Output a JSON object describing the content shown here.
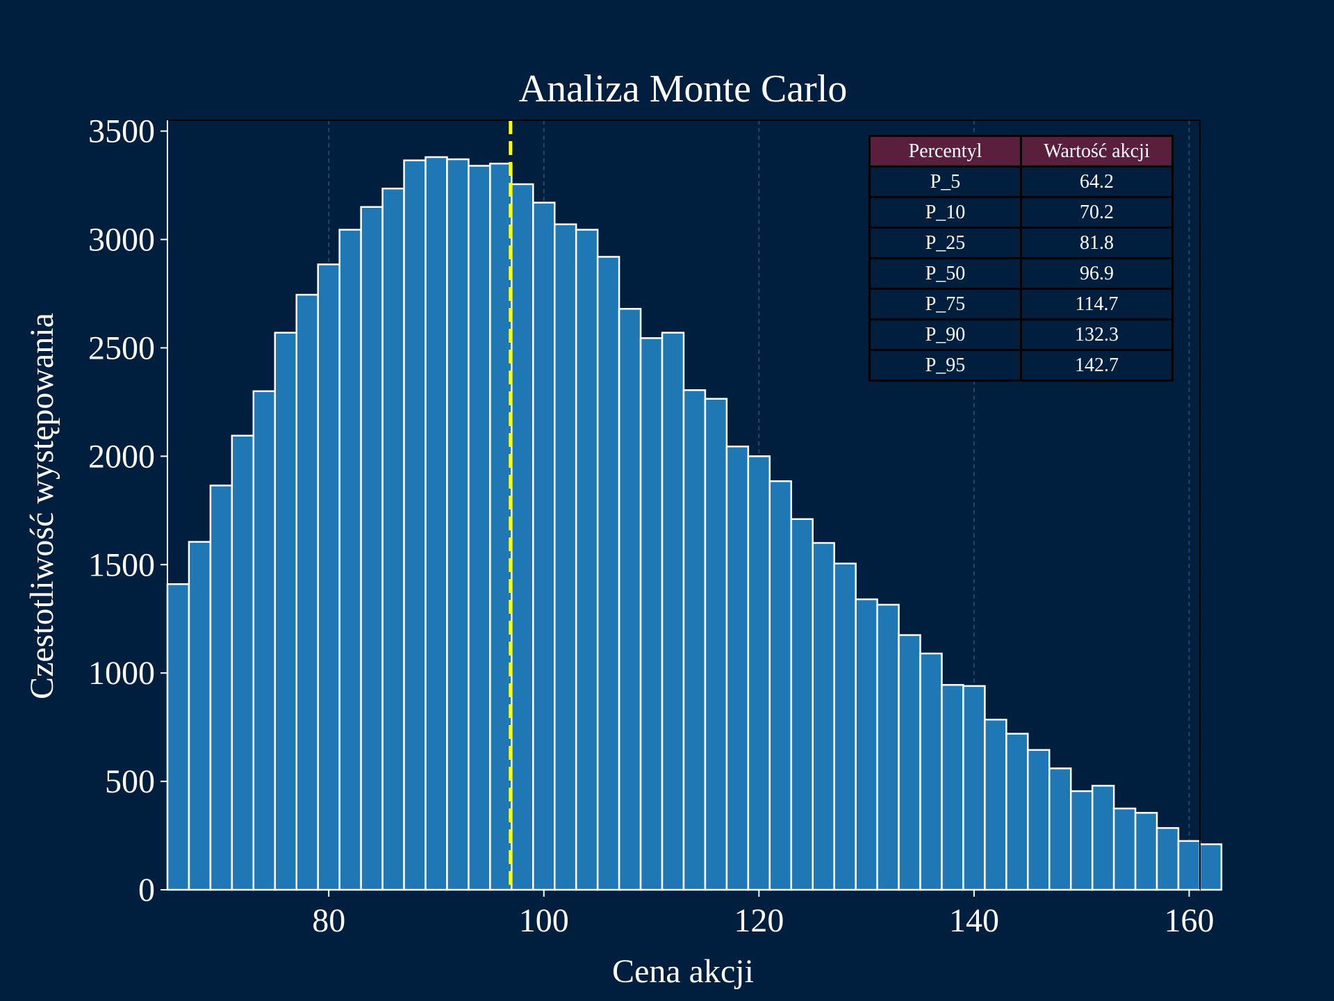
{
  "chart_data": {
    "type": "bar",
    "title": "Analiza Monte Carlo",
    "xlabel": "Cena akcji",
    "ylabel": "Czestotliwość występowania",
    "xlim": [
      65,
      161
    ],
    "ylim": [
      0,
      3550
    ],
    "xticks": [
      "80",
      "100",
      "120",
      "140",
      "160"
    ],
    "yticks": [
      "0",
      "500",
      "1000",
      "1500",
      "2000",
      "2500",
      "3000",
      "3500"
    ],
    "grid": "x, dashed",
    "bin_start": 65,
    "bin_width": 2,
    "values": [
      1410,
      1605,
      1865,
      2095,
      2300,
      2570,
      2745,
      2885,
      3045,
      3150,
      3235,
      3365,
      3380,
      3370,
      3340,
      3350,
      3255,
      3170,
      3070,
      3045,
      2920,
      2680,
      2545,
      2570,
      2305,
      2265,
      2045,
      2000,
      1885,
      1710,
      1600,
      1505,
      1340,
      1315,
      1175,
      1090,
      945,
      940,
      785,
      720,
      645,
      560,
      455,
      480,
      375,
      355,
      285,
      225,
      210
    ],
    "median_line": 96.9,
    "colors": {
      "background": "#001f3f",
      "bar": "#1f77b4",
      "bar_edge": "#ffffff",
      "median": "#ffff00",
      "grid": "#2a4560"
    }
  },
  "percentile_table": {
    "headers": [
      "Percentyl",
      "Wartość akcji"
    ],
    "rows": [
      [
        "P_5",
        "64.2"
      ],
      [
        "P_10",
        "70.2"
      ],
      [
        "P_25",
        "81.8"
      ],
      [
        "P_50",
        "96.9"
      ],
      [
        "P_75",
        "114.7"
      ],
      [
        "P_90",
        "132.3"
      ],
      [
        "P_95",
        "142.7"
      ]
    ]
  }
}
